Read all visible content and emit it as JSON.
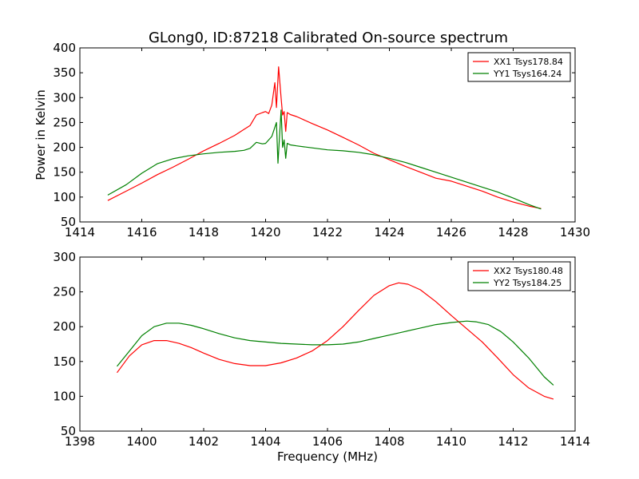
{
  "figure": {
    "title": "GLong0, ID:87218 Calibrated On-source spectrum"
  },
  "chart_data": [
    {
      "type": "line",
      "title": "GLong0, ID:87218 Calibrated On-source spectrum",
      "xlabel": "",
      "ylabel": "Power in Kelvin",
      "xlim": [
        1414,
        1430
      ],
      "ylim": [
        50,
        400
      ],
      "xticks": [
        1414,
        1416,
        1418,
        1420,
        1422,
        1424,
        1426,
        1428,
        1430
      ],
      "yticks": [
        50,
        100,
        150,
        200,
        250,
        300,
        350,
        400
      ],
      "grid": false,
      "legend_position": "top-right",
      "series": [
        {
          "name": "XX1 Tsys178.84",
          "color": "#ff0000",
          "x": [
            1414.9,
            1415.5,
            1416.0,
            1416.5,
            1417.0,
            1417.5,
            1418.0,
            1418.5,
            1419.0,
            1419.3,
            1419.5,
            1419.7,
            1419.9,
            1420.0,
            1420.1,
            1420.2,
            1420.3,
            1420.35,
            1420.42,
            1420.5,
            1420.55,
            1420.6,
            1420.65,
            1420.7,
            1420.8,
            1421.0,
            1421.5,
            1422.0,
            1422.5,
            1423.0,
            1423.5,
            1424.0,
            1424.5,
            1425.0,
            1425.5,
            1426.0,
            1426.5,
            1427.0,
            1427.5,
            1428.0,
            1428.5,
            1428.9
          ],
          "y": [
            93,
            112,
            128,
            145,
            160,
            176,
            193,
            208,
            224,
            236,
            244,
            265,
            270,
            272,
            268,
            285,
            330,
            280,
            362,
            300,
            265,
            272,
            232,
            270,
            266,
            262,
            248,
            235,
            220,
            205,
            188,
            175,
            162,
            150,
            138,
            132,
            122,
            112,
            100,
            90,
            82,
            77
          ]
        },
        {
          "name": "YY1 Tsys164.24",
          "color": "#008000",
          "x": [
            1414.9,
            1415.5,
            1416.0,
            1416.5,
            1417.0,
            1417.5,
            1418.0,
            1418.5,
            1419.0,
            1419.3,
            1419.5,
            1419.7,
            1419.9,
            1420.0,
            1420.2,
            1420.35,
            1420.4,
            1420.5,
            1420.55,
            1420.6,
            1420.65,
            1420.7,
            1420.8,
            1421.0,
            1421.5,
            1422.0,
            1422.5,
            1423.0,
            1423.5,
            1424.0,
            1424.5,
            1425.0,
            1425.5,
            1426.0,
            1426.5,
            1427.0,
            1427.5,
            1428.0,
            1428.5,
            1428.9
          ],
          "y": [
            104,
            125,
            148,
            167,
            177,
            183,
            187,
            190,
            192,
            194,
            198,
            210,
            207,
            208,
            222,
            250,
            168,
            275,
            200,
            215,
            178,
            208,
            205,
            203,
            199,
            195,
            193,
            190,
            185,
            178,
            170,
            160,
            150,
            140,
            130,
            120,
            110,
            98,
            85,
            76
          ]
        }
      ]
    },
    {
      "type": "line",
      "title": "",
      "xlabel": "Frequency (MHz)",
      "ylabel": "",
      "xlim": [
        1398,
        1414
      ],
      "ylim": [
        50,
        300
      ],
      "xticks": [
        1398,
        1400,
        1402,
        1404,
        1406,
        1408,
        1410,
        1412,
        1414
      ],
      "yticks": [
        50,
        100,
        150,
        200,
        250,
        300
      ],
      "grid": false,
      "legend_position": "top-right",
      "series": [
        {
          "name": "XX2 Tsys180.48",
          "color": "#ff0000",
          "x": [
            1399.2,
            1399.6,
            1400.0,
            1400.4,
            1400.8,
            1401.2,
            1401.6,
            1402.0,
            1402.5,
            1403.0,
            1403.5,
            1404.0,
            1404.5,
            1405.0,
            1405.5,
            1406.0,
            1406.5,
            1407.0,
            1407.5,
            1408.0,
            1408.3,
            1408.6,
            1409.0,
            1409.5,
            1410.0,
            1410.5,
            1411.0,
            1411.5,
            1412.0,
            1412.5,
            1413.0,
            1413.3
          ],
          "y": [
            134,
            158,
            174,
            180,
            180,
            176,
            170,
            162,
            153,
            147,
            144,
            144,
            148,
            155,
            165,
            180,
            200,
            223,
            245,
            259,
            263,
            261,
            253,
            236,
            216,
            197,
            178,
            155,
            131,
            112,
            100,
            96
          ]
        },
        {
          "name": "YY2 Tsys184.25",
          "color": "#008000",
          "x": [
            1399.2,
            1399.6,
            1400.0,
            1400.4,
            1400.8,
            1401.2,
            1401.6,
            1402.0,
            1402.5,
            1403.0,
            1403.5,
            1404.0,
            1404.5,
            1405.0,
            1405.5,
            1406.0,
            1406.5,
            1407.0,
            1407.5,
            1408.0,
            1408.5,
            1409.0,
            1409.5,
            1410.0,
            1410.5,
            1410.8,
            1411.2,
            1411.6,
            1412.0,
            1412.5,
            1413.0,
            1413.3
          ],
          "y": [
            143,
            165,
            187,
            200,
            205,
            205,
            202,
            197,
            190,
            184,
            180,
            178,
            176,
            175,
            174,
            174,
            175,
            178,
            183,
            188,
            193,
            198,
            203,
            206,
            208,
            207,
            203,
            193,
            178,
            155,
            128,
            116
          ]
        }
      ]
    }
  ]
}
